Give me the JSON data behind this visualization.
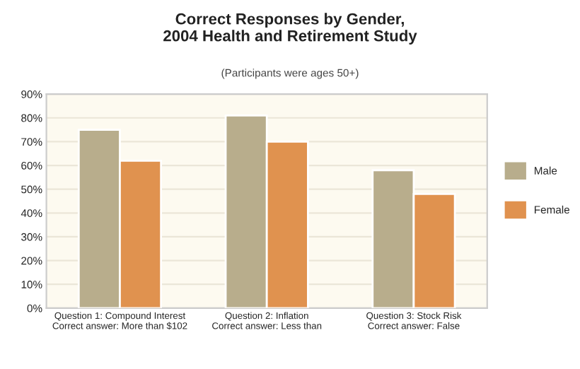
{
  "chart_data": {
    "type": "bar",
    "title": "Correct Responses by Gender,\n2004 Health and Retirement Study",
    "subtitle": "(Participants were ages 50+)",
    "categories": [
      "Question 1: Compound Interest\nCorrect answer: More than $102",
      "Question 2: Inflation\nCorrect answer: Less than",
      "Question 3: Stock Risk\nCorrect answer: False"
    ],
    "series": [
      {
        "name": "Male",
        "color": "#b8ad8c",
        "values": [
          75,
          81,
          58
        ]
      },
      {
        "name": "Female",
        "color": "#e0924f",
        "values": [
          62,
          70,
          48
        ]
      }
    ],
    "ylim": [
      0,
      90
    ],
    "yticks": [
      {
        "value": 0,
        "label": "0%"
      },
      {
        "value": 10,
        "label": "10%"
      },
      {
        "value": 20,
        "label": "20%"
      },
      {
        "value": 30,
        "label": "30%"
      },
      {
        "value": 40,
        "label": "40%"
      },
      {
        "value": 50,
        "label": "50%"
      },
      {
        "value": 60,
        "label": "60%"
      },
      {
        "value": 70,
        "label": "70%"
      },
      {
        "value": 80,
        "label": "80%"
      },
      {
        "value": 90,
        "label": "90%"
      }
    ],
    "grid": "y",
    "legend": "right"
  }
}
